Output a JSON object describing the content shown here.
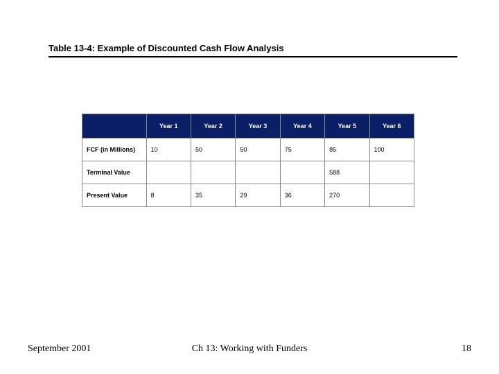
{
  "caption": {
    "text": "Table 13-4:  Example of Discounted Cash Flow Analysis"
  },
  "table": {
    "type": "table",
    "header_bg": "#0b1f66",
    "header_fg": "#ffffff",
    "border_color": "#8a8a8a",
    "cell_bg": "#ffffff",
    "cell_fg": "#000000",
    "font_family": "Arial",
    "font_size_pt": 7,
    "columns": [
      "",
      "Year 1",
      "Year 2",
      "Year 3",
      "Year 4",
      "Year 5",
      "Year 6"
    ],
    "rows": [
      {
        "label": "FCF (in Millions)",
        "cells": [
          "10",
          "50",
          "50",
          "75",
          "85",
          "100"
        ]
      },
      {
        "label": "Terminal Value",
        "cells": [
          "",
          "",
          "",
          "",
          "588",
          ""
        ]
      },
      {
        "label": "Present Value",
        "cells": [
          "8",
          "35",
          "29",
          "36",
          "270",
          ""
        ]
      }
    ]
  },
  "footer": {
    "date": "September 2001",
    "title": "Ch 13: Working with Funders",
    "page": "18"
  }
}
